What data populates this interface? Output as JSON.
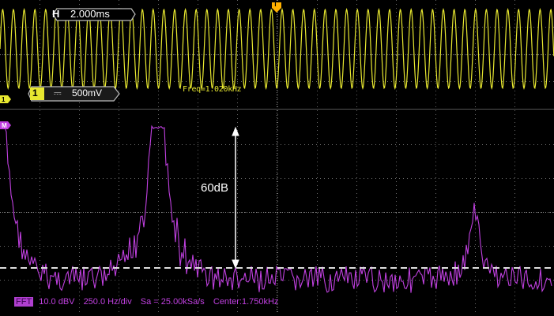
{
  "horizontal": {
    "label": "H",
    "timebase": "2.000ms"
  },
  "trigger": {
    "marker": "T"
  },
  "channel1": {
    "number": "1",
    "marker": "1",
    "coupling_symbol": "⎓",
    "scale": "500mV",
    "color": "#e8e830"
  },
  "measurement": {
    "freq": "Freq=1.020kHz"
  },
  "math": {
    "marker": "M",
    "color": "#c040e0",
    "annotation": "60dB",
    "bar": {
      "tag": "FFT",
      "scale": "10.0 dBV",
      "span": "250.0 Hz/div",
      "sample_rate": "Sa = 25.00kSa/s",
      "center": "Center:1.750kHz"
    }
  },
  "colors": {
    "grid": "#6a6a6a",
    "background": "#000000",
    "separator": "#c8c8c8"
  }
}
